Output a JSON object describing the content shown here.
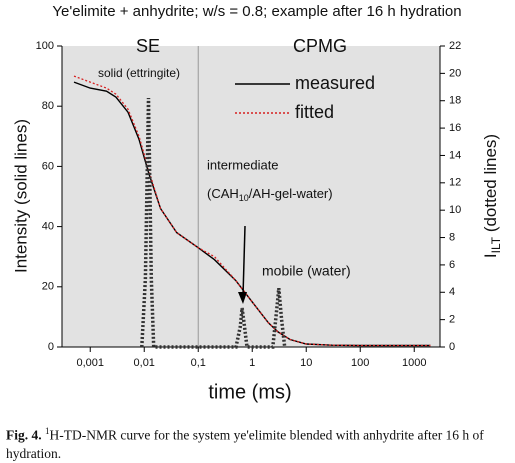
{
  "chart_data": {
    "type": "line",
    "title": "Ye'elimite + anhydrite; w/s = 0.8; example after 16 h hydration",
    "x_label": "time (ms)",
    "y_label": "Intensity (solid lines)",
    "y2_label_parts": [
      "I",
      "ILT",
      " (dotted lines)"
    ],
    "log_x": true,
    "xlim": [
      0.0003,
      3000
    ],
    "xticks": [
      {
        "value": 0.001,
        "label": "0,001"
      },
      {
        "value": 0.01,
        "label": "0,01"
      },
      {
        "value": 0.1,
        "label": "0,1"
      },
      1,
      10,
      100,
      1000
    ],
    "ylim": [
      0,
      100
    ],
    "yticks": [
      0,
      20,
      40,
      60,
      80,
      100
    ],
    "y2lim": [
      0,
      22
    ],
    "y2ticks": [
      0,
      2,
      4,
      6,
      8,
      10,
      12,
      14,
      16,
      18,
      20,
      22
    ],
    "divider_x": 0.1,
    "regions": [
      "SE",
      "CPMG"
    ],
    "background": "#e2e2e2",
    "annotations": [
      "solid (ettringite)",
      "intermediate",
      "mobile (water)"
    ],
    "annotation_parts": [
      "(CAH",
      "10",
      "/AH-gel-water)"
    ],
    "series": [
      {
        "name": "measured",
        "color": "#000000",
        "style": "solid",
        "x": [
          0.0005,
          0.001,
          0.002,
          0.003,
          0.005,
          0.008,
          0.012,
          0.02,
          0.04,
          0.1,
          0.2,
          0.5,
          1,
          2,
          3,
          5,
          10,
          30,
          100,
          1000,
          2000
        ],
        "values": [
          88,
          86,
          85,
          83,
          78,
          69,
          58,
          46,
          38,
          33,
          29,
          22,
          15,
          8,
          5,
          2.5,
          1,
          0.6,
          0.5,
          0.5,
          0.5
        ]
      },
      {
        "name": "fitted",
        "color": "#d62020",
        "style": "dotted",
        "x": [
          0.0005,
          0.001,
          0.002,
          0.003,
          0.005,
          0.008,
          0.012,
          0.02,
          0.04,
          0.1,
          0.2,
          0.5,
          1,
          2,
          3,
          5,
          10,
          30,
          100,
          1000,
          2000
        ],
        "values": [
          90,
          88,
          86,
          84,
          79,
          70,
          59,
          46,
          38,
          33,
          30,
          22,
          15,
          8,
          5,
          2.5,
          1,
          0.6,
          0.5,
          0.5,
          0.5
        ]
      },
      {
        "color": "#333333",
        "style": "ilt",
        "axis": "y2",
        "x": [
          0.009,
          0.0105,
          0.012,
          0.0135,
          0.015,
          0.5,
          0.6,
          0.65,
          0.72,
          0.8,
          2.4,
          2.8,
          3.1,
          3.5,
          4
        ],
        "values": [
          0,
          5,
          18.2,
          5,
          0,
          0,
          1.5,
          2.85,
          1.5,
          0,
          0,
          2.5,
          4.3,
          2,
          0
        ]
      }
    ],
    "caption_label": "Fig. 4.",
    "caption_sup": "1",
    "caption_text": "H-TD-NMR curve for the system ye'elimite blended with anhydrite after 16 h of hydration."
  }
}
